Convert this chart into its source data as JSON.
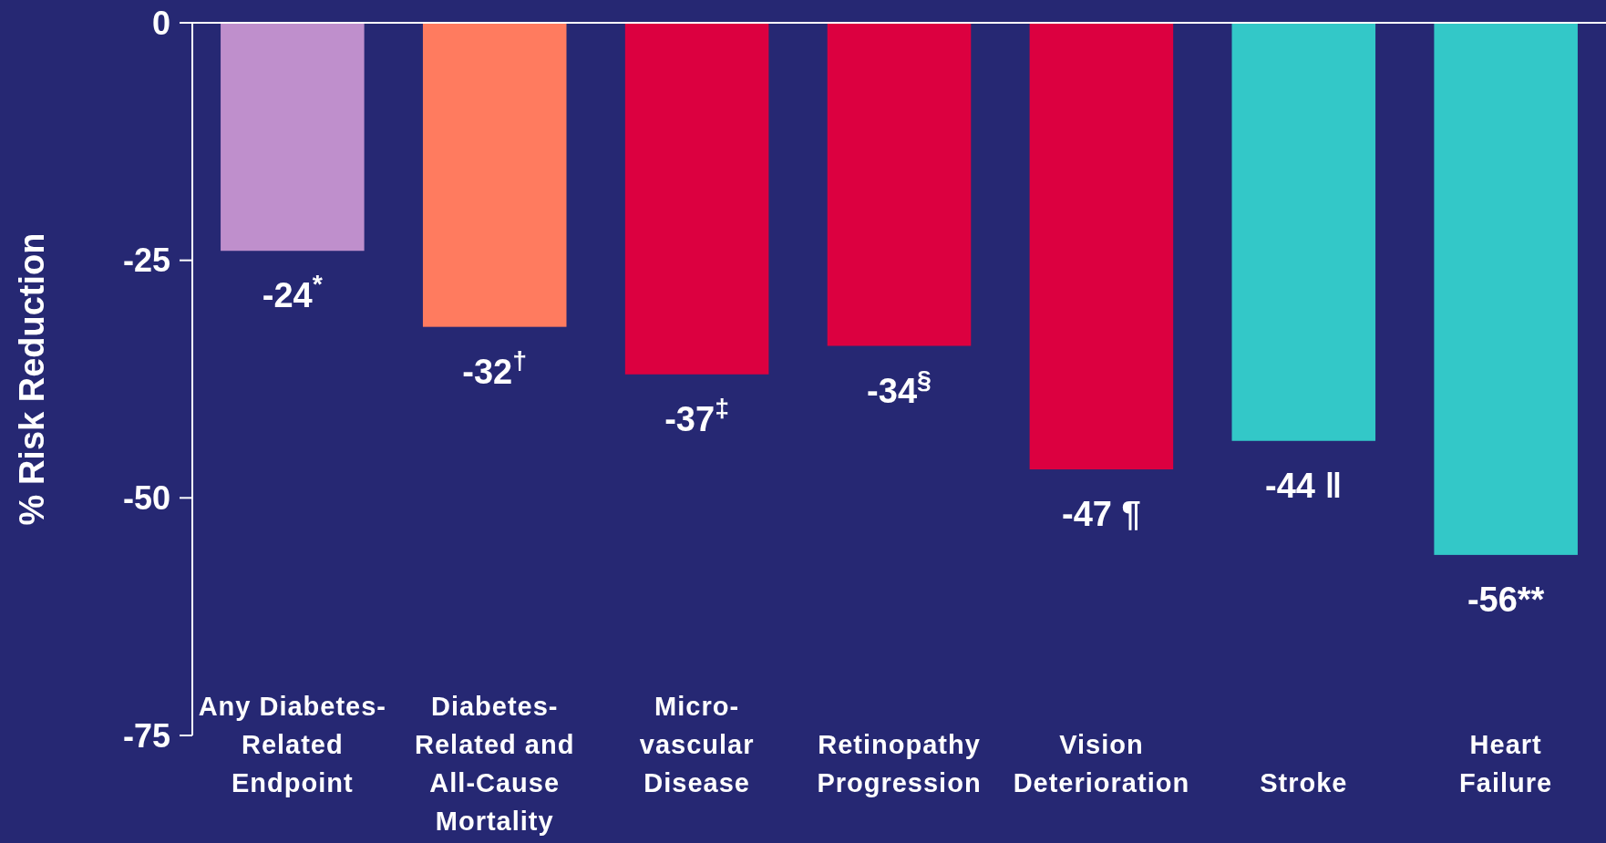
{
  "chart_data": {
    "type": "bar",
    "ylabel": "% Risk Reduction",
    "categories": [
      "Any Diabetes-\nRelated\nEndpoint",
      "Diabetes-\nRelated and\nAll-Cause\nMortality",
      "Micro-\nvascular\nDisease",
      "Retinopathy\nProgression",
      "Vision\nDeterioration",
      "Stroke",
      "Heart\nFailure"
    ],
    "values": [
      -24,
      -32,
      -37,
      -34,
      -47,
      -44,
      -56
    ],
    "value_labels": [
      "-24$^{*}$",
      "-32$^{†}$",
      "-37$^{‡}$",
      "-34$^{§}$",
      "-47 ¶",
      "-44 ‖",
      "-56**"
    ],
    "colors": [
      "#bf8fcc",
      "#ff7b5f",
      "#dc0040",
      "#dc0040",
      "#dc0040",
      "#33c8c8",
      "#33c8c8"
    ],
    "ylim": [
      -75,
      0
    ],
    "yticks": [
      -75,
      -50,
      -25,
      0
    ],
    "grid": false
  }
}
